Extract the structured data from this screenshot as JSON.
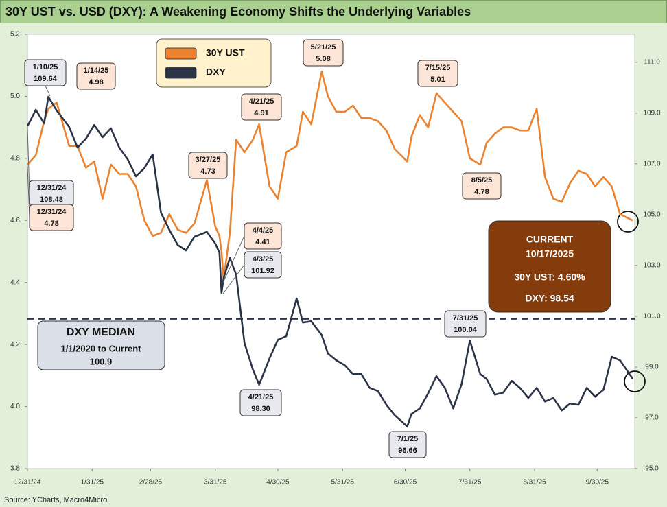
{
  "chart_data": {
    "type": "line",
    "title": "30Y UST vs. USD (DXY): A Weakening Economy Shifts the Underlying Variables",
    "source": "Source: YCharts, Macro4Micro",
    "x": [
      "2024-12-31",
      "2025-01-04",
      "2025-01-08",
      "2025-01-10",
      "2025-01-14",
      "2025-01-20",
      "2025-01-24",
      "2025-01-28",
      "2025-02-01",
      "2025-02-05",
      "2025-02-09",
      "2025-02-13",
      "2025-02-17",
      "2025-02-21",
      "2025-02-25",
      "2025-03-01",
      "2025-03-05",
      "2025-03-09",
      "2025-03-13",
      "2025-03-17",
      "2025-03-21",
      "2025-03-27",
      "2025-03-31",
      "2025-04-02",
      "2025-04-03",
      "2025-04-04",
      "2025-04-07",
      "2025-04-10",
      "2025-04-14",
      "2025-04-18",
      "2025-04-21",
      "2025-04-26",
      "2025-04-30",
      "2025-05-04",
      "2025-05-09",
      "2025-05-12",
      "2025-05-16",
      "2025-05-21",
      "2025-05-24",
      "2025-05-28",
      "2025-06-01",
      "2025-06-05",
      "2025-06-09",
      "2025-06-13",
      "2025-06-17",
      "2025-06-21",
      "2025-06-25",
      "2025-07-01",
      "2025-07-03",
      "2025-07-07",
      "2025-07-11",
      "2025-07-15",
      "2025-07-19",
      "2025-07-23",
      "2025-07-27",
      "2025-07-31",
      "2025-08-05",
      "2025-08-08",
      "2025-08-12",
      "2025-08-16",
      "2025-08-20",
      "2025-08-24",
      "2025-08-28",
      "2025-09-01",
      "2025-09-05",
      "2025-09-09",
      "2025-09-13",
      "2025-09-17",
      "2025-09-21",
      "2025-09-25",
      "2025-09-29",
      "2025-10-03",
      "2025-10-07",
      "2025-10-11",
      "2025-10-17"
    ],
    "series": [
      {
        "name": "30Y UST",
        "color": "#ea8230",
        "axis": "y",
        "values": [
          4.78,
          4.81,
          4.92,
          4.96,
          4.98,
          4.84,
          4.84,
          4.77,
          4.79,
          4.67,
          4.78,
          4.75,
          4.75,
          4.71,
          4.6,
          4.55,
          4.56,
          4.62,
          4.57,
          4.56,
          4.59,
          4.73,
          4.58,
          4.55,
          4.5,
          4.41,
          4.56,
          4.86,
          4.82,
          4.86,
          4.91,
          4.71,
          4.67,
          4.82,
          4.84,
          4.95,
          4.91,
          5.08,
          5.0,
          4.95,
          4.95,
          4.97,
          4.93,
          4.93,
          4.92,
          4.89,
          4.83,
          4.79,
          4.87,
          4.94,
          4.9,
          5.01,
          4.98,
          4.95,
          4.92,
          4.8,
          4.78,
          4.85,
          4.88,
          4.9,
          4.9,
          4.89,
          4.89,
          4.96,
          4.74,
          4.67,
          4.66,
          4.72,
          4.76,
          4.75,
          4.71,
          4.74,
          4.71,
          4.62,
          4.6
        ]
      },
      {
        "name": "DXY",
        "color": "#2b3447",
        "axis": "y2",
        "values": [
          108.48,
          109.13,
          108.59,
          109.64,
          109.1,
          108.45,
          107.64,
          107.99,
          108.53,
          108.05,
          108.4,
          107.64,
          107.18,
          106.51,
          106.83,
          107.37,
          105.07,
          104.4,
          103.8,
          103.59,
          104.13,
          104.32,
          103.86,
          103.5,
          101.92,
          102.5,
          103.3,
          102.64,
          99.94,
          98.9,
          98.3,
          99.34,
          100.07,
          100.21,
          101.7,
          100.75,
          100.8,
          100.26,
          99.53,
          99.26,
          99.07,
          98.72,
          98.72,
          98.18,
          98.05,
          97.51,
          97.1,
          96.66,
          97.15,
          97.37,
          97.96,
          98.64,
          98.18,
          97.37,
          98.32,
          100.04,
          98.72,
          98.53,
          97.91,
          97.99,
          98.45,
          98.18,
          97.78,
          98.18,
          97.64,
          97.78,
          97.29,
          97.56,
          97.51,
          98.18,
          97.83,
          98.1,
          99.4,
          99.26,
          98.54
        ]
      }
    ],
    "xlim": [
      "2024-12-31",
      "2025-10-18"
    ],
    "xticks": [
      {
        "value": "2024-12-31",
        "label": "12/31/24"
      },
      {
        "value": "2025-01-31",
        "label": "1/31/25"
      },
      {
        "value": "2025-02-28",
        "label": "2/28/25"
      },
      {
        "value": "2025-03-31",
        "label": "3/31/25"
      },
      {
        "value": "2025-04-30",
        "label": "4/30/25"
      },
      {
        "value": "2025-05-31",
        "label": "5/31/25"
      },
      {
        "value": "2025-06-30",
        "label": "6/30/25"
      },
      {
        "value": "2025-07-31",
        "label": "7/31/25"
      },
      {
        "value": "2025-08-31",
        "label": "8/31/25"
      },
      {
        "value": "2025-09-30",
        "label": "9/30/25"
      }
    ],
    "ylim": [
      3.8,
      5.2
    ],
    "yticks": [
      3.8,
      {
        "value": 4.0,
        "label": "4.0"
      },
      4.2,
      4.4,
      4.6,
      4.8,
      {
        "value": 5.0,
        "label": "5.0"
      },
      5.2
    ],
    "y2lim": [
      95,
      112.1
    ],
    "y2ticks": [
      {
        "value": 95,
        "label": "95.0"
      },
      {
        "value": 97,
        "label": "97.0"
      },
      {
        "value": 99,
        "label": "99.0"
      },
      {
        "value": 101,
        "label": "101.0"
      },
      {
        "value": 103,
        "label": "103.0"
      },
      {
        "value": 105,
        "label": "105.0"
      },
      {
        "value": 107,
        "label": "107.0"
      },
      {
        "value": 109,
        "label": "109.0"
      },
      {
        "value": 111,
        "label": "111.0"
      }
    ],
    "grid": false,
    "median": {
      "value": 100.9,
      "axis": "y2",
      "title": "DXY MEDIAN",
      "subtitle": "1/1/2020 to Current"
    },
    "current": [
      "CURRENT",
      "10/17/2025",
      "30Y UST:  4.60%",
      "DXY:  98.54"
    ],
    "annotations": [
      {
        "series": 1,
        "text": [
          "1/10/25",
          "109.64"
        ]
      },
      {
        "series": 0,
        "text": [
          "1/14/25",
          "4.98"
        ]
      },
      {
        "series": 1,
        "text": [
          "12/31/24",
          "108.48"
        ]
      },
      {
        "series": 0,
        "text": [
          "12/31/24",
          "4.78"
        ]
      },
      {
        "series": 0,
        "text": [
          "3/27/25",
          "4.73"
        ]
      },
      {
        "series": 0,
        "text": [
          "4/21/25",
          "4.91"
        ]
      },
      {
        "series": 0,
        "text": [
          "5/21/25",
          "5.08"
        ]
      },
      {
        "series": 0,
        "text": [
          "7/15/25",
          "5.01"
        ]
      },
      {
        "series": 0,
        "text": [
          "8/5/25",
          "4.78"
        ]
      },
      {
        "series": 0,
        "text": [
          "4/4/25",
          "4.41"
        ]
      },
      {
        "series": 1,
        "text": [
          "4/3/25",
          "101.92"
        ]
      },
      {
        "series": 1,
        "text": [
          "4/21/25",
          "98.30"
        ]
      },
      {
        "series": 1,
        "text": [
          "7/1/25",
          "96.66"
        ]
      },
      {
        "series": 1,
        "text": [
          "7/31/25",
          "100.04"
        ]
      }
    ]
  }
}
